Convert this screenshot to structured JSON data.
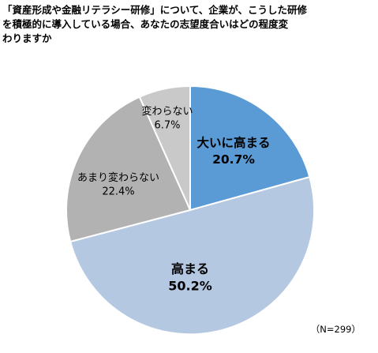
{
  "title_lines": [
    "「資産形成や金融リテラシー研修」について、企業が、こうした研修",
    "を積極的に導入している場合、あなたの志望度合いはどの程度変",
    "わりますか"
  ],
  "note": "（N=299）",
  "chart_data": {
    "type": "pie",
    "title": "「資産形成や金融リテラシー研修」について、企業が、こうした研修を積極的に導入している場合、あなたの志望度合いはどの程度変わりますか",
    "sample_size": "N=299",
    "unit": "%",
    "start": "12 o'clock",
    "direction": "clockwise",
    "slices": [
      {
        "label": "大いに高まる",
        "value": 20.7,
        "display": "20.7%",
        "color": "#5b9bd5",
        "label_weight": "bold"
      },
      {
        "label": "高まる",
        "value": 50.2,
        "display": "50.2%",
        "color": "#b4c8e2",
        "label_weight": "bold"
      },
      {
        "label": "あまり変わらない",
        "value": 22.4,
        "display": "22.4%",
        "color": "#b2b2b2",
        "label_weight": "normal"
      },
      {
        "label": "変わらない",
        "value": 6.7,
        "display": "6.7%",
        "color": "#c9c9c9",
        "label_weight": "normal"
      }
    ]
  }
}
